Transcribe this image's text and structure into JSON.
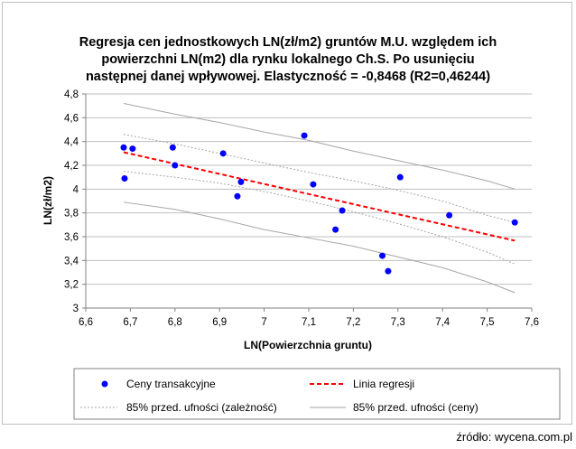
{
  "chart_data": {
    "type": "scatter",
    "title_lines": [
      "Regresja cen jednostkowych LN(zł/m2) gruntów M.U. względem ich",
      "powierzchni LN(m2) dla rynku lokalnego Ch.S. Po usunięciu",
      "następnej danej wpływowej. Elastyczność = -0,8468 (R2=0,46244)"
    ],
    "xlabel": "LN(Powierzchnia gruntu)",
    "ylabel": "LN(zł/m2)",
    "xlim": [
      6.6,
      7.6
    ],
    "ylim": [
      3,
      4.8
    ],
    "x_ticks": [
      6.6,
      6.7,
      6.8,
      6.9,
      7,
      7.1,
      7.2,
      7.3,
      7.4,
      7.5,
      7.6
    ],
    "x_tick_labels": [
      "6,6",
      "6,7",
      "6,8",
      "6,9",
      "7",
      "7,1",
      "7,2",
      "7,3",
      "7,4",
      "7,5",
      "7,6"
    ],
    "y_ticks": [
      3,
      3.2,
      3.4,
      3.6,
      3.8,
      4,
      4.2,
      4.4,
      4.6,
      4.8
    ],
    "y_tick_labels": [
      "3",
      "3,2",
      "3,4",
      "3,6",
      "3,8",
      "4",
      "4,2",
      "4,4",
      "4,6",
      "4,8"
    ],
    "points": [
      {
        "x": 6.685,
        "y": 4.35
      },
      {
        "x": 6.705,
        "y": 4.34
      },
      {
        "x": 6.687,
        "y": 4.09
      },
      {
        "x": 6.795,
        "y": 4.35
      },
      {
        "x": 6.8,
        "y": 4.2
      },
      {
        "x": 6.908,
        "y": 4.3
      },
      {
        "x": 6.94,
        "y": 3.94
      },
      {
        "x": 6.948,
        "y": 4.06
      },
      {
        "x": 7.09,
        "y": 4.45
      },
      {
        "x": 7.11,
        "y": 4.04
      },
      {
        "x": 7.16,
        "y": 3.66
      },
      {
        "x": 7.175,
        "y": 3.82
      },
      {
        "x": 7.265,
        "y": 3.44
      },
      {
        "x": 7.278,
        "y": 3.31
      },
      {
        "x": 7.305,
        "y": 4.1
      },
      {
        "x": 7.415,
        "y": 3.78
      },
      {
        "x": 7.562,
        "y": 3.72
      }
    ],
    "regression": {
      "slope": -0.8468,
      "x": [
        6.685,
        7.562
      ],
      "y": [
        4.31,
        3.567
      ]
    },
    "conf_band_mean": {
      "x": [
        6.685,
        6.8,
        6.9,
        7.0,
        7.1,
        7.2,
        7.3,
        7.4,
        7.5,
        7.562
      ],
      "upper": [
        4.46,
        4.38,
        4.3,
        4.22,
        4.14,
        4.07,
        3.99,
        3.9,
        3.78,
        3.72
      ],
      "lower": [
        4.15,
        4.1,
        4.05,
        3.98,
        3.9,
        3.81,
        3.71,
        3.6,
        3.47,
        3.37
      ]
    },
    "pred_band": {
      "x": [
        6.685,
        6.8,
        6.9,
        7.0,
        7.1,
        7.2,
        7.3,
        7.4,
        7.5,
        7.562
      ],
      "upper": [
        4.72,
        4.63,
        4.56,
        4.48,
        4.41,
        4.32,
        4.24,
        4.16,
        4.07,
        4.0
      ],
      "lower": [
        3.89,
        3.83,
        3.75,
        3.66,
        3.59,
        3.52,
        3.43,
        3.34,
        3.22,
        3.13
      ]
    },
    "legend": [
      {
        "key": "points",
        "label": "Ceny transakcyjne"
      },
      {
        "key": "regression",
        "label": "Linia regresji"
      },
      {
        "key": "conf_band_mean",
        "label": "85% przed. ufności (zależność)"
      },
      {
        "key": "pred_band",
        "label": "85% przed. ufności (ceny)"
      }
    ],
    "legend_position": "bottom",
    "colors": {
      "points": "#0000ff",
      "regression": "#ff0000",
      "conf_band": "#a6a6a6",
      "pred_band": "#a6a6a6",
      "grid": "#bfbfbf"
    }
  },
  "source": "źródło: wycena.com.pl"
}
